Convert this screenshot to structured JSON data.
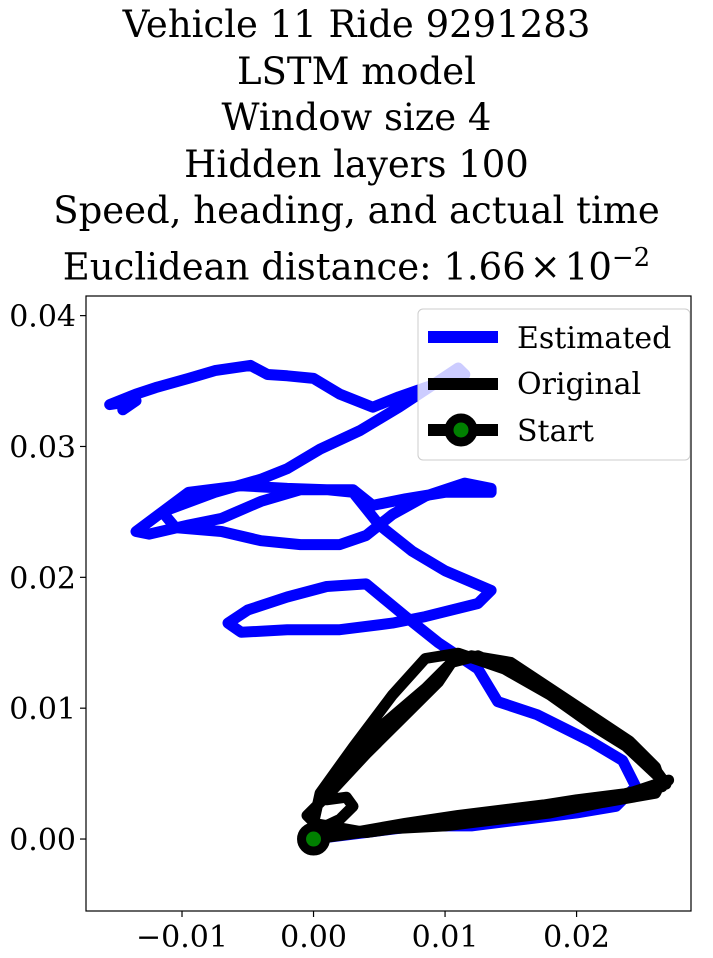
{
  "chart_data": {
    "type": "line",
    "title_lines": [
      "Vehicle 11 Ride 9291283",
      "LSTM model",
      "Window size 4",
      "Hidden layers 100",
      "Speed, heading, and actual time"
    ],
    "distance_label": "Euclidean distance: ",
    "distance_mantissa": "1.66",
    "distance_times": "×",
    "distance_base": "10",
    "distance_exponent": "−2",
    "xlabel": "",
    "ylabel": "",
    "xlim": [
      -0.0173,
      0.0287
    ],
    "ylim": [
      -0.0055,
      0.0415
    ],
    "xticks": [
      -0.01,
      0.0,
      0.01,
      0.02
    ],
    "xtick_labels": [
      "−0.01",
      "0.00",
      "0.01",
      "0.02"
    ],
    "yticks": [
      0.0,
      0.01,
      0.02,
      0.03,
      0.04
    ],
    "ytick_labels": [
      "0.00",
      "0.01",
      "0.02",
      "0.03",
      "0.04"
    ],
    "grid": false,
    "legend_position": "top-right",
    "series": [
      {
        "name": "Estimated",
        "color": "#0000ff",
        "x": [
          0.0,
          0.004,
          0.008,
          0.012,
          0.016,
          0.02,
          0.023,
          0.0245,
          0.0235,
          0.021,
          0.017,
          0.014,
          0.0125,
          0.0095,
          0.007,
          0.004,
          0.001,
          -0.002,
          -0.005,
          -0.0065,
          -0.0055,
          -0.002,
          0.002,
          0.006,
          0.0085,
          0.0125,
          0.0135,
          0.01,
          0.0075,
          0.005,
          0.003,
          0.001,
          -0.002,
          -0.0055,
          -0.0095,
          -0.0115,
          -0.0105,
          -0.007,
          -0.004,
          -0.001,
          0.002,
          0.004,
          0.006,
          0.0085,
          0.0115,
          0.0135,
          0.0135,
          0.01,
          0.007,
          0.0045,
          0.003,
          -0.001,
          -0.004,
          -0.007,
          -0.0095,
          -0.0125,
          -0.0135,
          -0.0115,
          -0.0075,
          -0.004,
          -0.002,
          0.0005,
          0.0035,
          0.0065,
          0.0095,
          0.011,
          0.0115,
          0.0085,
          0.0065,
          0.0045,
          0.002,
          0.0,
          -0.002,
          -0.0035,
          -0.0048,
          -0.0075,
          -0.0095,
          -0.012,
          -0.0135,
          -0.0155,
          -0.0135,
          -0.0145
        ],
        "y": [
          0.0,
          0.0005,
          0.001,
          0.001,
          0.0015,
          0.002,
          0.0025,
          0.004,
          0.006,
          0.0075,
          0.0095,
          0.0105,
          0.013,
          0.015,
          0.017,
          0.0195,
          0.0193,
          0.0185,
          0.0175,
          0.0165,
          0.0158,
          0.016,
          0.016,
          0.0165,
          0.017,
          0.018,
          0.019,
          0.0205,
          0.022,
          0.024,
          0.0265,
          0.0267,
          0.0268,
          0.027,
          0.0265,
          0.025,
          0.0238,
          0.0235,
          0.0228,
          0.0225,
          0.0225,
          0.0232,
          0.0248,
          0.0262,
          0.0272,
          0.0268,
          0.0265,
          0.0265,
          0.026,
          0.0255,
          0.0267,
          0.0267,
          0.0258,
          0.0245,
          0.024,
          0.0233,
          0.0235,
          0.025,
          0.0265,
          0.0275,
          0.0283,
          0.0298,
          0.0312,
          0.033,
          0.035,
          0.036,
          0.0355,
          0.0345,
          0.0338,
          0.033,
          0.034,
          0.0352,
          0.0354,
          0.0355,
          0.0362,
          0.0358,
          0.0352,
          0.0345,
          0.034,
          0.0332,
          0.0335,
          0.0328
        ]
      },
      {
        "name": "Original",
        "color": "#000000",
        "x": [
          0.0,
          0.005,
          0.01,
          0.015,
          0.02,
          0.024,
          0.0265,
          0.026,
          0.024,
          0.021,
          0.018,
          0.015,
          0.012,
          0.0105,
          0.0095,
          0.007,
          0.004,
          0.0015,
          -0.0005,
          0.0005,
          0.002,
          0.003,
          0.0025,
          0.001,
          0.0025,
          0.005,
          0.0085,
          0.0105,
          0.0125,
          0.016,
          0.0195,
          0.023,
          0.0265,
          0.026,
          0.022,
          0.018,
          0.014,
          0.01,
          0.006,
          0.003,
          0.001,
          0.0,
          0.003,
          0.007,
          0.011,
          0.015,
          0.019,
          0.023,
          0.0268,
          0.0255,
          0.0215,
          0.018,
          0.0145,
          0.011,
          0.0085,
          0.006,
          0.003,
          0.0005,
          0.0,
          0.004,
          0.009,
          0.014,
          0.019,
          0.024,
          0.027
        ],
        "y": [
          0.0,
          0.0007,
          0.0015,
          0.0022,
          0.003,
          0.0035,
          0.004,
          0.0055,
          0.0075,
          0.0095,
          0.0115,
          0.0135,
          0.014,
          0.0135,
          0.012,
          0.0095,
          0.0065,
          0.0038,
          0.0018,
          0.0008,
          0.0015,
          0.0025,
          0.0032,
          0.003,
          0.0055,
          0.0085,
          0.0115,
          0.0135,
          0.014,
          0.0125,
          0.0105,
          0.0078,
          0.0045,
          0.0035,
          0.0028,
          0.002,
          0.0015,
          0.001,
          0.0008,
          0.0005,
          0.0003,
          0.0,
          0.0005,
          0.0012,
          0.0018,
          0.0023,
          0.0028,
          0.0033,
          0.0042,
          0.006,
          0.0085,
          0.011,
          0.013,
          0.0142,
          0.0138,
          0.011,
          0.007,
          0.0035,
          0.0012,
          0.0005,
          0.0012,
          0.002,
          0.0028,
          0.0035,
          0.0045
        ]
      }
    ],
    "start_point": {
      "name": "Start",
      "x": 0.0,
      "y": 0.0,
      "marker_color": "#008000",
      "edge_color": "#000000"
    }
  }
}
